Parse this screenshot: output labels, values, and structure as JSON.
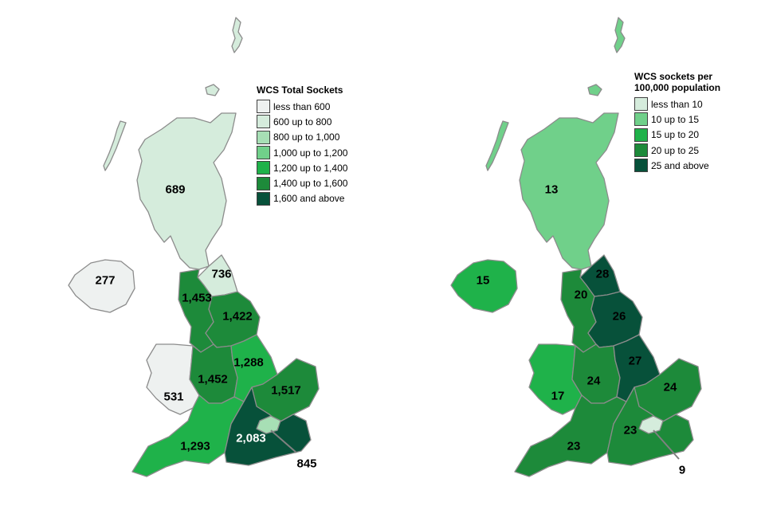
{
  "maps": [
    {
      "legend_title": "WCS Total Sockets",
      "legend": [
        {
          "label": "less than 600",
          "color": "#eef1f0"
        },
        {
          "label": "600 up to 800",
          "color": "#d5ecdc"
        },
        {
          "label": "800 up to 1,000",
          "color": "#a7dfb5"
        },
        {
          "label": "1,000 up to 1,200",
          "color": "#70d08a"
        },
        {
          "label": "1,200 up to 1,400",
          "color": "#1fb24a"
        },
        {
          "label": "1,400 up to 1,600",
          "color": "#1d8a3a"
        },
        {
          "label": "1,600 and above",
          "color": "#07513a"
        }
      ],
      "regions": {
        "scotland": {
          "value": "689",
          "color": "#d5ecdc"
        },
        "northern_ireland": {
          "value": "277",
          "color": "#eef1f0"
        },
        "north_east": {
          "value": "736",
          "color": "#d5ecdc"
        },
        "north_west": {
          "value": "1,453",
          "color": "#1d8a3a"
        },
        "yorkshire": {
          "value": "1,422",
          "color": "#1d8a3a"
        },
        "wales": {
          "value": "531",
          "color": "#eef1f0"
        },
        "west_midlands": {
          "value": "1,452",
          "color": "#1d8a3a"
        },
        "east_midlands": {
          "value": "1,288",
          "color": "#1fb24a"
        },
        "east": {
          "value": "1,517",
          "color": "#1d8a3a"
        },
        "south_west": {
          "value": "1,293",
          "color": "#1fb24a"
        },
        "south_east": {
          "value": "2,083",
          "color": "#07513a"
        },
        "london": {
          "value": "845",
          "color": "#a7dfb5"
        }
      }
    },
    {
      "legend_title_line1": "WCS sockets per",
      "legend_title_line2": "100,000 population",
      "legend": [
        {
          "label": "less than 10",
          "color": "#d5ecdc"
        },
        {
          "label": "10 up to 15",
          "color": "#70d08a"
        },
        {
          "label": "15 up to 20",
          "color": "#1fb24a"
        },
        {
          "label": "20 up to 25",
          "color": "#1d8a3a"
        },
        {
          "label": "25 and above",
          "color": "#07513a"
        }
      ],
      "regions": {
        "scotland": {
          "value": "13",
          "color": "#70d08a"
        },
        "northern_ireland": {
          "value": "15",
          "color": "#1fb24a"
        },
        "north_east": {
          "value": "28",
          "color": "#07513a"
        },
        "north_west": {
          "value": "20",
          "color": "#1d8a3a"
        },
        "yorkshire": {
          "value": "26",
          "color": "#07513a"
        },
        "wales": {
          "value": "17",
          "color": "#1fb24a"
        },
        "west_midlands": {
          "value": "24",
          "color": "#1d8a3a"
        },
        "east_midlands": {
          "value": "27",
          "color": "#07513a"
        },
        "east": {
          "value": "24",
          "color": "#1d8a3a"
        },
        "south_west": {
          "value": "23",
          "color": "#1d8a3a"
        },
        "south_east": {
          "value": "23",
          "color": "#1d8a3a"
        },
        "london": {
          "value": "9",
          "color": "#d5ecdc"
        }
      }
    }
  ]
}
